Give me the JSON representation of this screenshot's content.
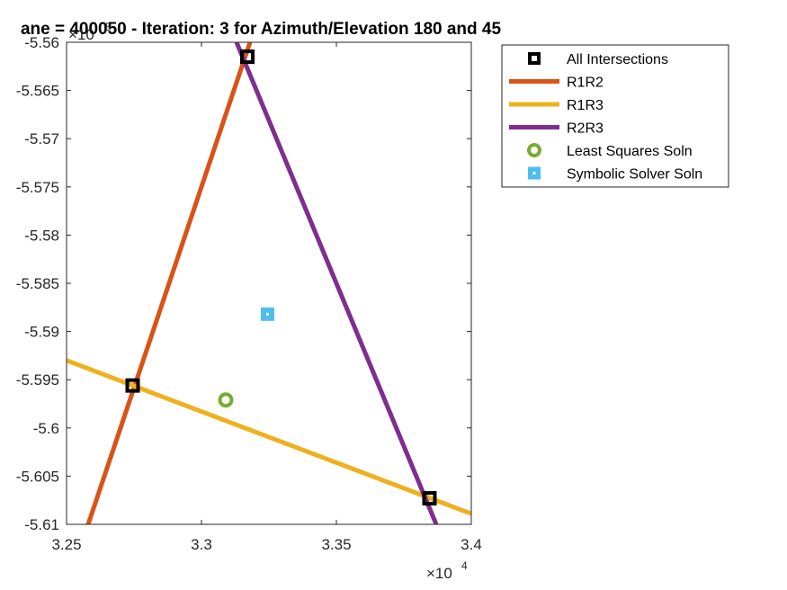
{
  "chart_data": {
    "type": "line",
    "title": "ane = 400050 - Iteration: 3 for Azimuth/Elevation 180 and 45",
    "xlabel": "",
    "ylabel": "",
    "xlim": [
      32500,
      34000
    ],
    "ylim": [
      -561000,
      -556000
    ],
    "x_ticks": [
      32500,
      33000,
      33500,
      34000
    ],
    "x_tick_labels": [
      "3.25",
      "3.3",
      "3.35",
      "3.4"
    ],
    "y_ticks": [
      -556000,
      -556500,
      -557000,
      -557500,
      -558000,
      -558500,
      -559000,
      -559500,
      -560000,
      -560500,
      -561000
    ],
    "y_tick_labels": [
      "-5.56",
      "-5.565",
      "-5.57",
      "-5.575",
      "-5.58",
      "-5.585",
      "-5.59",
      "-5.595",
      "-5.6",
      "-5.605",
      "-5.61"
    ],
    "x_exponent_label": "×10",
    "x_exponent_power": "4",
    "y_exponent_label": "×10",
    "y_exponent_power": "5",
    "grid": false,
    "legend_position": "outside-top-right",
    "series": [
      {
        "name": "All Intersections",
        "kind": "marker-square",
        "color": "#000000",
        "points": [
          [
            33170,
            -556150
          ],
          [
            32745,
            -559560
          ],
          [
            33845,
            -560730
          ]
        ]
      },
      {
        "name": "R1R2",
        "kind": "line",
        "color": "#D95319",
        "points": [
          [
            32580,
            -561000
          ],
          [
            33180,
            -556000
          ]
        ]
      },
      {
        "name": "R1R3",
        "kind": "line",
        "color": "#EDB120",
        "points": [
          [
            32500,
            -559300
          ],
          [
            34000,
            -560890
          ]
        ]
      },
      {
        "name": "R2R3",
        "kind": "line",
        "color": "#7E2F8E",
        "points": [
          [
            33130,
            -556000
          ],
          [
            33870,
            -561000
          ]
        ]
      },
      {
        "name": "Least Squares Soln",
        "kind": "marker-circle",
        "color": "#77AC30",
        "points": [
          [
            33090,
            -559710
          ]
        ]
      },
      {
        "name": "Symbolic Solver Soln",
        "kind": "marker-filled-square",
        "color": "#4DBEEE",
        "points": [
          [
            33245,
            -558820
          ]
        ]
      }
    ]
  }
}
